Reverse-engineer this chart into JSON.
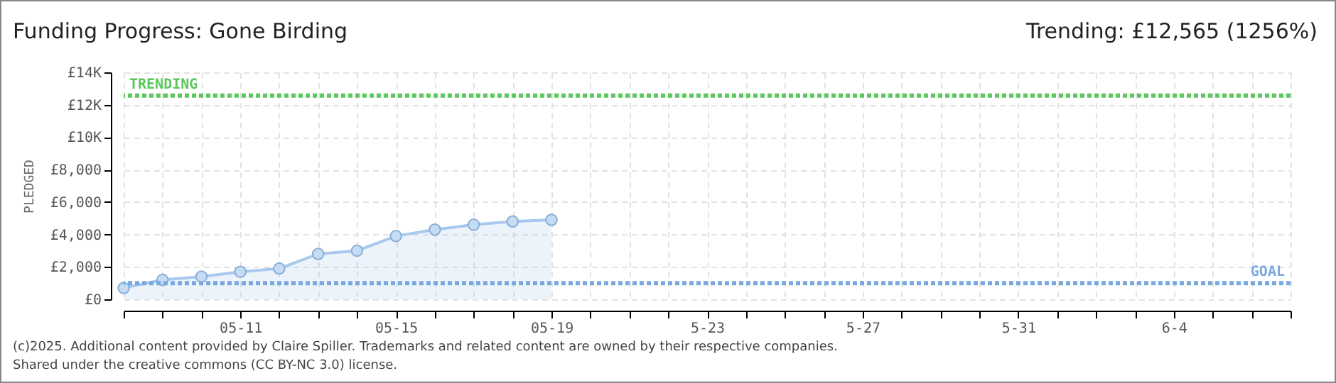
{
  "chart_data": {
    "type": "area",
    "title": "Funding Progress: Gone Birding",
    "ylabel": "PLEDGED",
    "x": [
      "--05-08",
      "--05-09",
      "--05-10",
      "--05-11",
      "--05-12",
      "--05-13",
      "--05-14",
      "--05-15",
      "--05-16",
      "--05-17",
      "--05-18",
      "--05-19"
    ],
    "series": [
      {
        "color": "#a9c8ee",
        "values": [
          700,
          1200,
          1400,
          1700,
          1900,
          2800,
          3000,
          3900,
          4300,
          4600,
          4800,
          4900
        ]
      }
    ],
    "marker": "circle",
    "grid": true,
    "xlim": [
      "--05-08",
      "--06-07"
    ],
    "xticks": [
      {
        "value": "--05-08",
        "label": null
      },
      {
        "value": "--05-09",
        "label": null
      },
      {
        "value": "--05-10",
        "label": null
      },
      {
        "value": "--05-11",
        "label": "05-11"
      },
      {
        "value": "--05-12",
        "label": null
      },
      {
        "value": "--05-13",
        "label": null
      },
      {
        "value": "--05-14",
        "label": null
      },
      {
        "value": "--05-15",
        "label": "05-15"
      },
      {
        "value": "--05-16",
        "label": null
      },
      {
        "value": "--05-17",
        "label": null
      },
      {
        "value": "--05-18",
        "label": null
      },
      {
        "value": "--05-19",
        "label": "05-19"
      },
      {
        "value": "--05-20",
        "label": null
      },
      {
        "value": "--05-21",
        "label": null
      },
      {
        "value": "--05-22",
        "label": null
      },
      {
        "value": "--05-23",
        "label": "5-23"
      },
      {
        "value": "--05-24",
        "label": null
      },
      {
        "value": "--05-25",
        "label": null
      },
      {
        "value": "--05-26",
        "label": null
      },
      {
        "value": "--05-27",
        "label": "5-27"
      },
      {
        "value": "--05-28",
        "label": null
      },
      {
        "value": "--05-29",
        "label": null
      },
      {
        "value": "--05-30",
        "label": null
      },
      {
        "value": "--05-31",
        "label": "5-31"
      },
      {
        "value": "--06-01",
        "label": null
      },
      {
        "value": "--06-02",
        "label": null
      },
      {
        "value": "--06-03",
        "label": null
      },
      {
        "value": "--06-04",
        "label": "6-4"
      },
      {
        "value": "--06-05",
        "label": null
      },
      {
        "value": "--06-06",
        "label": null
      },
      {
        "value": "--06-07",
        "label": null
      }
    ],
    "ylim": [
      0,
      14000
    ],
    "yticks": [
      {
        "value": 0,
        "label": "£0"
      },
      {
        "value": 2000,
        "label": "£2,000"
      },
      {
        "value": 4000,
        "label": "£4,000"
      },
      {
        "value": 6000,
        "label": "£6,000"
      },
      {
        "value": 8000,
        "label": "£8,000"
      },
      {
        "value": 10000,
        "label": "£10K"
      },
      {
        "value": 12000,
        "label": "£12K"
      },
      {
        "value": 14000,
        "label": "£14K"
      }
    ],
    "ref_lines": [
      {
        "axis": "y",
        "value": 12565,
        "label": "TRENDING",
        "color": "#5cc85c",
        "line_style": "dotted"
      },
      {
        "axis": "y",
        "value": 1000,
        "label": "GOAL",
        "color": "#7aa8e0",
        "line_style": "dotted"
      }
    ],
    "annotations": [
      "Trending: £12,565 (1256%)",
      "(c)2025. Additional content provided by Claire Spiller. Trademarks and related content are owned by their respective companies.",
      "Shared under the creative commons (CC BY-NC 3.0) license."
    ]
  }
}
